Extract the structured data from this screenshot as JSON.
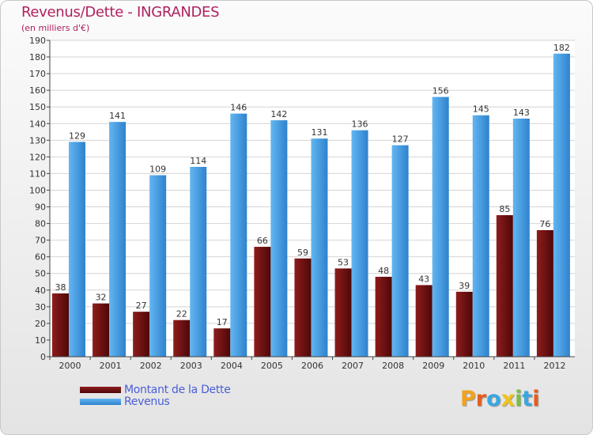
{
  "title": "Revenus/Dette - INGRANDES",
  "subtitle": "(en milliers d'€)",
  "colors": {
    "dette": "#7a1414",
    "revenus": "#4ea6e6",
    "title": "#b02060",
    "legend": "#4a5ed8"
  },
  "legend": [
    {
      "label": "Montant de la Dette",
      "color": "#7a1414"
    },
    {
      "label": "Revenus",
      "color": "#4ea6e6"
    }
  ],
  "brand": {
    "letters": [
      {
        "ch": "P",
        "color": "#f2a21c"
      },
      {
        "ch": "r",
        "color": "#e85c1c"
      },
      {
        "ch": "o",
        "color": "#3aa6e0"
      },
      {
        "ch": "x",
        "color": "#f2c21c"
      },
      {
        "ch": "i",
        "color": "#78c03c"
      },
      {
        "ch": "t",
        "color": "#3aa6e0"
      },
      {
        "ch": "i",
        "color": "#e85c1c"
      }
    ]
  },
  "chart_data": {
    "type": "bar",
    "title": "Revenus/Dette - INGRANDES",
    "subtitle": "(en milliers d'€)",
    "categories": [
      "2000",
      "2001",
      "2002",
      "2003",
      "2004",
      "2005",
      "2006",
      "2007",
      "2008",
      "2009",
      "2010",
      "2011",
      "2012"
    ],
    "series": [
      {
        "name": "Montant de la Dette",
        "color": "#7a1414",
        "values": [
          38,
          32,
          27,
          22,
          17,
          66,
          59,
          53,
          48,
          43,
          39,
          85,
          76
        ]
      },
      {
        "name": "Revenus",
        "color": "#4ea6e6",
        "values": [
          129,
          141,
          109,
          114,
          146,
          142,
          131,
          136,
          127,
          156,
          145,
          143,
          182
        ]
      }
    ],
    "ylim": [
      0,
      190
    ],
    "ytick_step": 10,
    "grid": true,
    "legend": "bottom-left",
    "data_labels": true
  }
}
